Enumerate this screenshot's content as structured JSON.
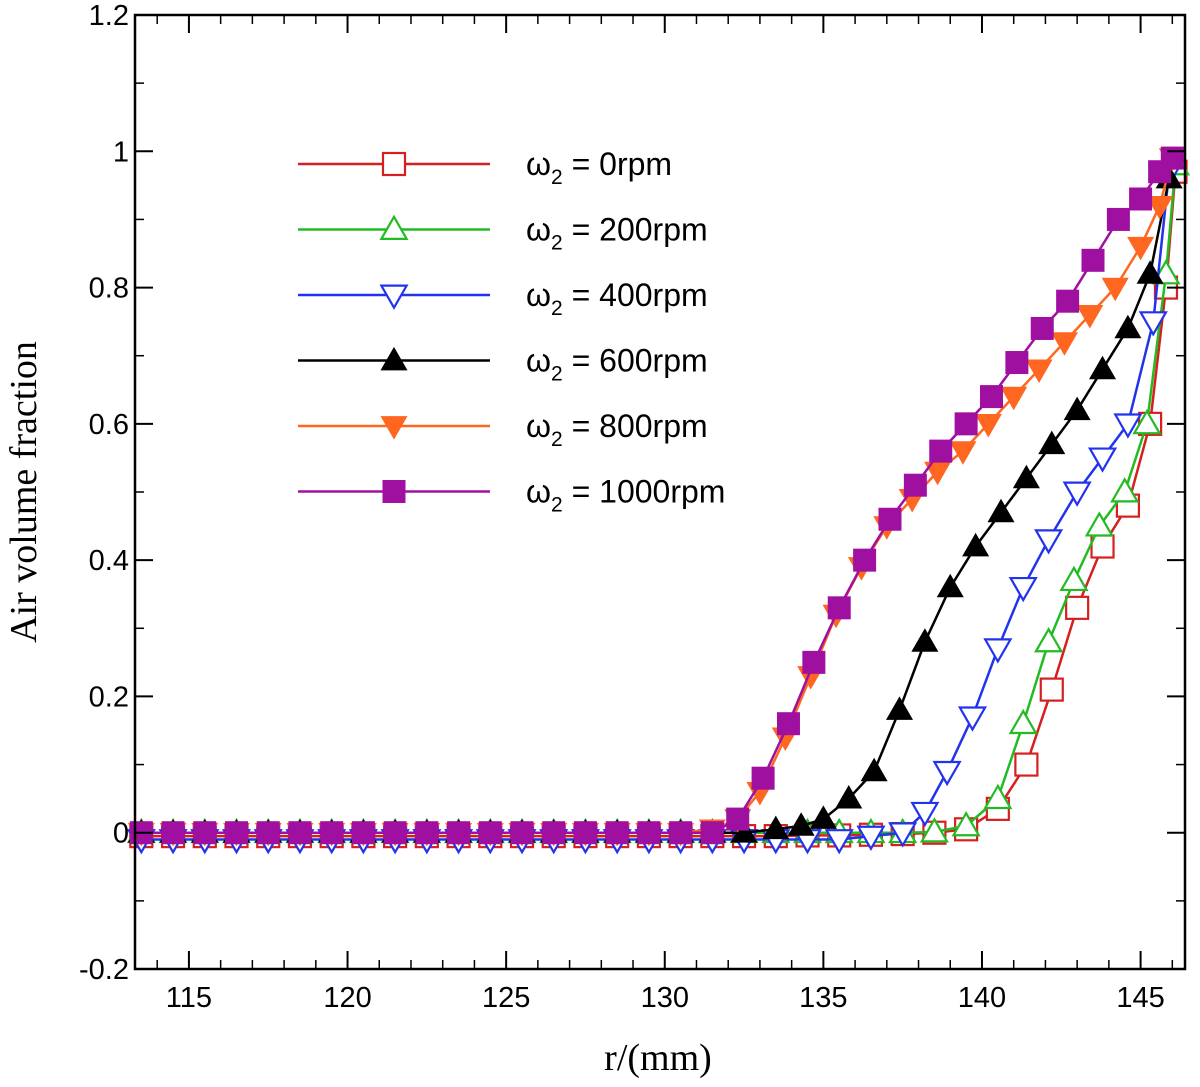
{
  "chart_data": {
    "type": "line",
    "xlabel": "r/(mm)",
    "ylabel": "Air volume fraction",
    "xlim": [
      113.3,
      146.4
    ],
    "ylim": [
      -0.2,
      1.2
    ],
    "xticks": [
      115,
      120,
      125,
      130,
      135,
      140,
      145
    ],
    "xtick_labels": [
      "115",
      "120",
      "125",
      "130",
      "135",
      "140",
      "145"
    ],
    "yticks": [
      -0.2,
      0,
      0.2,
      0.4,
      0.6,
      0.8,
      1,
      1.2
    ],
    "ytick_labels": [
      "-0.2",
      "0",
      "0.2",
      "0.4",
      "0.6",
      "0.8",
      "1",
      "1.2"
    ],
    "grid": false,
    "legend_position": "top-center",
    "series": [
      {
        "name": "ω2 = 0rpm",
        "name_base": "ω",
        "name_sub": "2",
        "name_rest": " = 0rpm",
        "color": "#d62020",
        "marker": "square-open",
        "x": [
          113.5,
          114.5,
          115.5,
          116.5,
          117.5,
          118.5,
          119.5,
          120.5,
          121.5,
          122.5,
          123.5,
          124.5,
          125.5,
          126.5,
          127.5,
          128.5,
          129.5,
          130.5,
          131.5,
          132.5,
          133.5,
          134.5,
          135.5,
          136.5,
          137.5,
          138.5,
          139.5,
          140.5,
          141.4,
          142.2,
          143.0,
          143.8,
          144.6,
          145.3,
          145.8,
          146.1
        ],
        "y": [
          -0.005,
          -0.005,
          -0.005,
          -0.005,
          -0.005,
          -0.005,
          -0.005,
          -0.005,
          -0.005,
          -0.005,
          -0.005,
          -0.005,
          -0.005,
          -0.005,
          -0.005,
          -0.005,
          -0.005,
          -0.005,
          -0.005,
          -0.005,
          -0.005,
          -0.004,
          -0.004,
          -0.003,
          -0.002,
          0.0,
          0.005,
          0.035,
          0.1,
          0.21,
          0.33,
          0.42,
          0.48,
          0.6,
          0.8,
          0.97
        ]
      },
      {
        "name": "ω2 = 200rpm",
        "name_base": "ω",
        "name_sub": "2",
        "name_rest": " = 200rpm",
        "color": "#22bb22",
        "marker": "triangle-up-open",
        "x": [
          113.5,
          114.5,
          115.5,
          116.5,
          117.5,
          118.5,
          119.5,
          120.5,
          121.5,
          122.5,
          123.5,
          124.5,
          125.5,
          126.5,
          127.5,
          128.5,
          129.5,
          130.5,
          131.5,
          132.5,
          133.5,
          134.5,
          135.5,
          136.5,
          137.5,
          138.5,
          139.5,
          140.5,
          141.3,
          142.1,
          142.9,
          143.7,
          144.5,
          145.2,
          145.8,
          146.1
        ],
        "y": [
          0.0,
          0.0,
          0.0,
          0.0,
          0.0,
          0.0,
          0.0,
          0.0,
          0.0,
          0.0,
          0.0,
          0.0,
          0.0,
          0.0,
          0.0,
          0.0,
          0.0,
          0.0,
          0.0,
          0.0,
          0.0,
          0.0,
          0.0,
          0.0,
          0.0,
          0.001,
          0.01,
          0.05,
          0.16,
          0.28,
          0.37,
          0.45,
          0.5,
          0.6,
          0.82,
          0.98
        ]
      },
      {
        "name": "ω2 = 400rpm",
        "name_base": "ω",
        "name_sub": "2",
        "name_rest": " = 400rpm",
        "color": "#2233ee",
        "marker": "triangle-down-open",
        "x": [
          113.5,
          114.5,
          115.5,
          116.5,
          117.5,
          118.5,
          119.5,
          120.5,
          121.5,
          122.5,
          123.5,
          124.5,
          125.5,
          126.5,
          127.5,
          128.5,
          129.5,
          130.5,
          131.5,
          132.5,
          133.5,
          134.5,
          135.5,
          136.5,
          137.5,
          138.2,
          138.9,
          139.7,
          140.5,
          141.3,
          142.1,
          143.0,
          143.8,
          144.6,
          145.4,
          145.9
        ],
        "y": [
          -0.01,
          -0.01,
          -0.01,
          -0.01,
          -0.01,
          -0.01,
          -0.01,
          -0.01,
          -0.01,
          -0.01,
          -0.01,
          -0.01,
          -0.01,
          -0.01,
          -0.01,
          -0.01,
          -0.01,
          -0.01,
          -0.01,
          -0.01,
          -0.01,
          -0.01,
          -0.01,
          -0.005,
          0.0,
          0.03,
          0.09,
          0.17,
          0.27,
          0.36,
          0.43,
          0.5,
          0.55,
          0.6,
          0.75,
          0.97
        ]
      },
      {
        "name": "ω2 = 600rpm",
        "name_base": "ω",
        "name_sub": "2",
        "name_rest": " = 600rpm",
        "color": "#000000",
        "marker": "triangle-up-filled",
        "x": [
          113.5,
          114.5,
          115.5,
          116.5,
          117.5,
          118.5,
          119.5,
          120.5,
          121.5,
          122.5,
          123.5,
          124.5,
          125.5,
          126.5,
          127.5,
          128.5,
          129.5,
          130.5,
          131.5,
          132.5,
          133.5,
          134.3,
          135.0,
          135.8,
          136.6,
          137.4,
          138.2,
          139.0,
          139.8,
          140.6,
          141.4,
          142.2,
          143.0,
          143.8,
          144.6,
          145.3,
          145.9
        ],
        "y": [
          0.0,
          0.0,
          0.0,
          0.0,
          0.0,
          0.0,
          0.0,
          0.0,
          0.0,
          0.0,
          0.0,
          0.0,
          0.0,
          0.0,
          0.0,
          0.0,
          0.0,
          0.0,
          0.0,
          0.0,
          0.005,
          0.01,
          0.02,
          0.05,
          0.09,
          0.18,
          0.28,
          0.36,
          0.42,
          0.47,
          0.52,
          0.57,
          0.62,
          0.68,
          0.74,
          0.82,
          0.96
        ]
      },
      {
        "name": "ω2 = 800rpm",
        "name_base": "ω",
        "name_sub": "2",
        "name_rest": " = 800rpm",
        "color": "#ff6620",
        "marker": "triangle-down-filled",
        "x": [
          113.5,
          114.5,
          115.5,
          116.5,
          117.5,
          118.5,
          119.5,
          120.5,
          121.5,
          122.5,
          123.5,
          124.5,
          125.5,
          126.5,
          127.5,
          128.5,
          129.5,
          130.5,
          131.5,
          132.3,
          133.0,
          133.8,
          134.6,
          135.4,
          136.2,
          137.0,
          137.8,
          138.6,
          139.4,
          140.2,
          141.0,
          141.8,
          142.6,
          143.4,
          144.2,
          145.0,
          145.6,
          146.0
        ],
        "y": [
          0.0,
          0.0,
          0.0,
          0.0,
          0.0,
          0.0,
          0.0,
          0.0,
          0.0,
          0.0,
          0.0,
          0.0,
          0.0,
          0.0,
          0.0,
          0.0,
          0.0,
          0.0,
          0.005,
          0.02,
          0.06,
          0.14,
          0.23,
          0.32,
          0.39,
          0.45,
          0.49,
          0.53,
          0.56,
          0.6,
          0.64,
          0.68,
          0.72,
          0.76,
          0.8,
          0.86,
          0.92,
          0.99
        ]
      },
      {
        "name": "ω2 = 1000rpm",
        "name_base": "ω",
        "name_sub": "2",
        "name_rest": " = 1000rpm",
        "color": "#a010a0",
        "marker": "square-filled",
        "x": [
          113.5,
          114.5,
          115.5,
          116.5,
          117.5,
          118.5,
          119.5,
          120.5,
          121.5,
          122.5,
          123.5,
          124.5,
          125.5,
          126.5,
          127.5,
          128.5,
          129.5,
          130.5,
          131.5,
          132.3,
          133.1,
          133.9,
          134.7,
          135.5,
          136.3,
          137.1,
          137.9,
          138.7,
          139.5,
          140.3,
          141.1,
          141.9,
          142.7,
          143.5,
          144.3,
          145.0,
          145.6,
          146.0
        ],
        "y": [
          0.0,
          0.0,
          0.0,
          0.0,
          0.0,
          0.0,
          0.0,
          0.0,
          0.0,
          0.0,
          0.0,
          0.0,
          0.0,
          0.0,
          0.0,
          0.0,
          0.0,
          0.0,
          0.0,
          0.02,
          0.08,
          0.16,
          0.25,
          0.33,
          0.4,
          0.46,
          0.51,
          0.56,
          0.6,
          0.64,
          0.69,
          0.74,
          0.78,
          0.84,
          0.9,
          0.93,
          0.97,
          0.99
        ]
      }
    ]
  }
}
